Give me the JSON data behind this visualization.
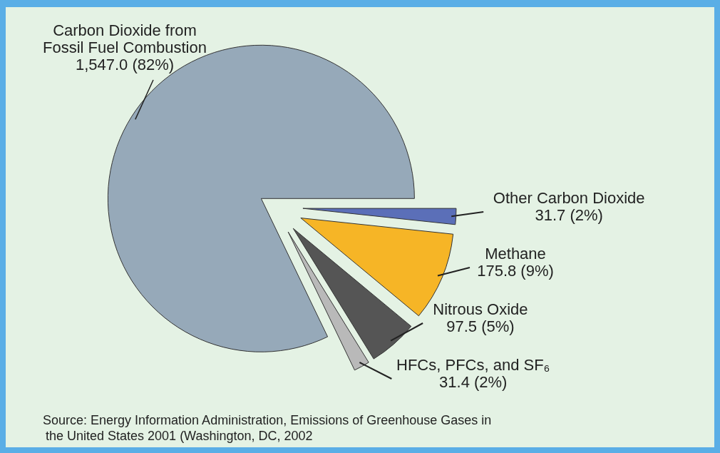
{
  "chart_data": {
    "type": "pie",
    "categories": [
      "Carbon Dioxide from Fossil Fuel Combustion",
      "Other Carbon Dioxide",
      "Methane",
      "Nitrous Oxide",
      "HFCs, PFCs, and SF₆"
    ],
    "values": [
      1547.0,
      31.7,
      175.8,
      97.5,
      31.4
    ],
    "colors": [
      "#96a9b9",
      "#5b6fb8",
      "#f6b526",
      "#555555",
      "#b9b9b9"
    ],
    "value_labels": [
      "1,547.0 (82%)",
      "31.7 (2%)",
      "175.8 (9%)",
      "97.5 (5%)",
      "31.4 (2%)"
    ],
    "annotations": [
      "Source: Energy Information Administration, Emissions of Greenhouse Gases in the United States 2001 (Washington, DC, 2002"
    ]
  }
}
